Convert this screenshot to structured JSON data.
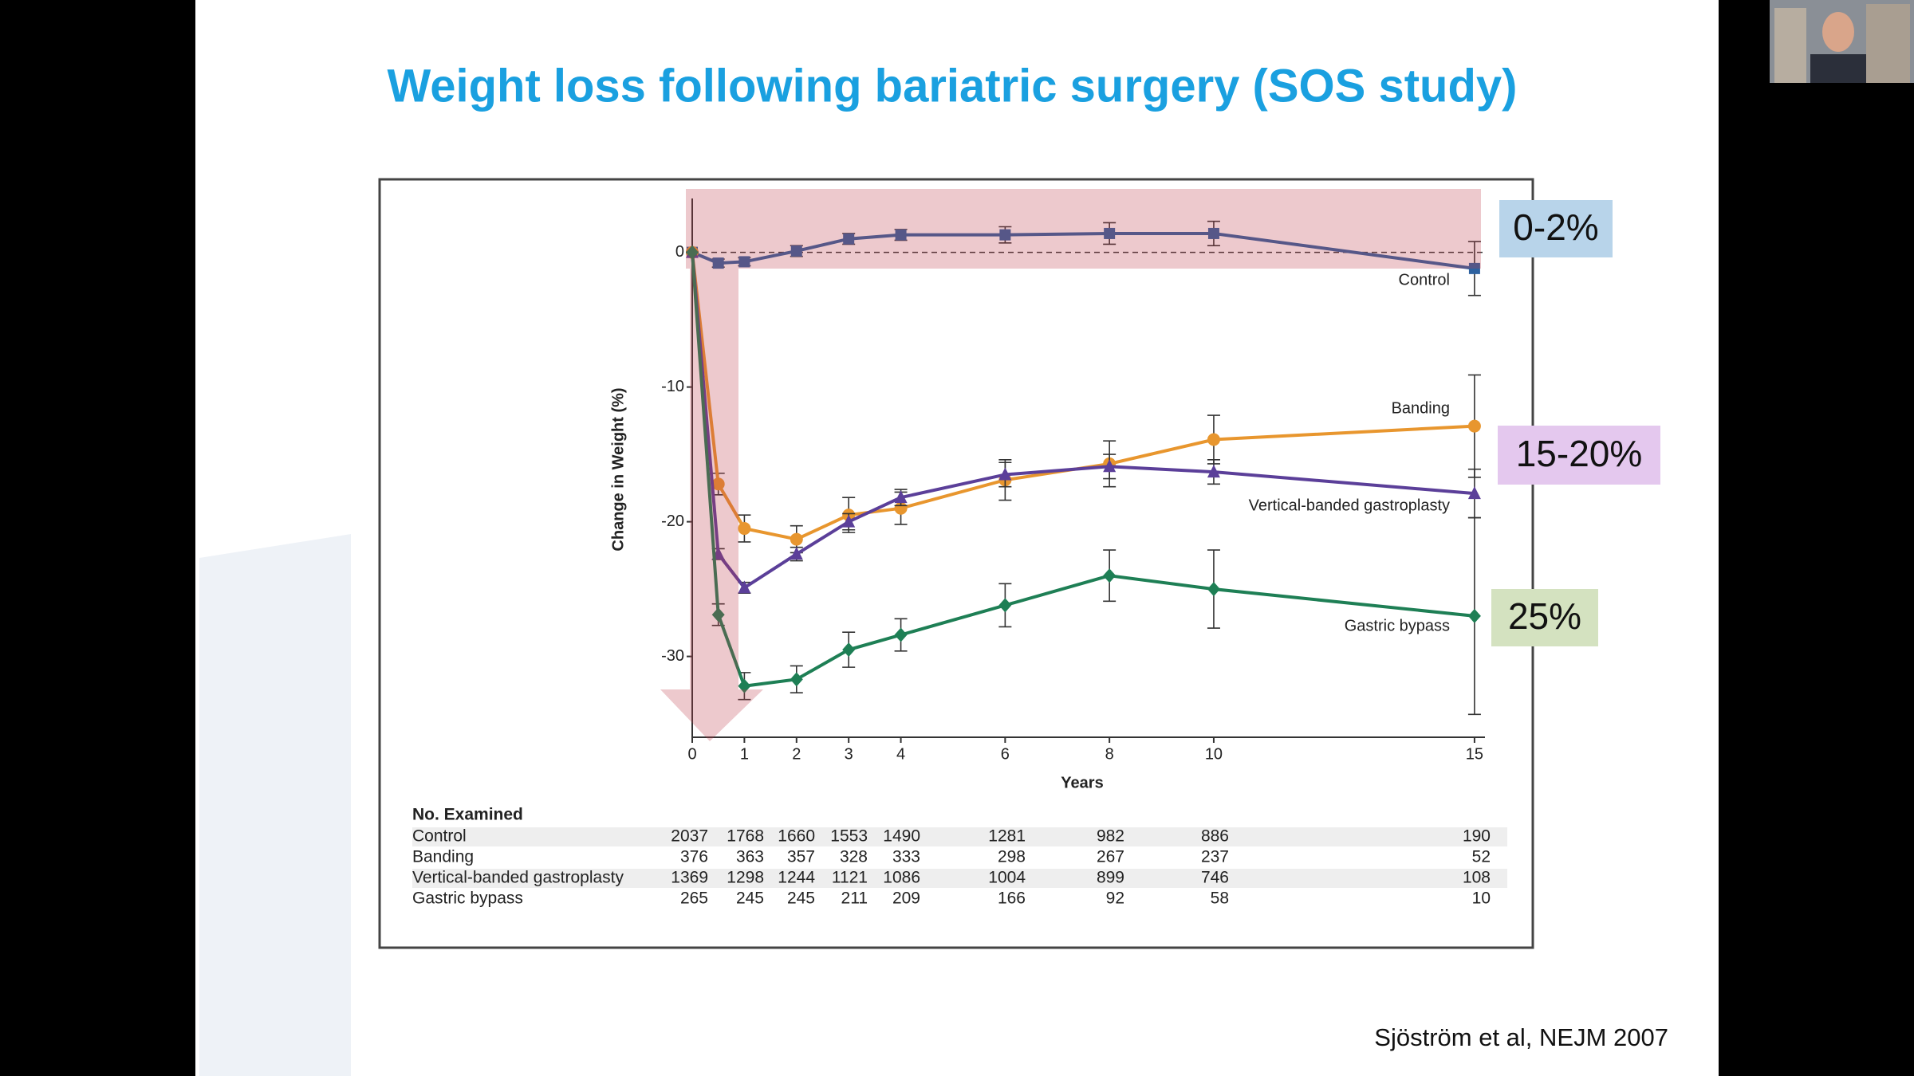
{
  "chart_data": {
    "type": "line",
    "title": "Weight loss following bariatric surgery (SOS study)",
    "ylabel": "Change in Weight (%)",
    "xlabel": "Years",
    "x": [
      0,
      0.5,
      1,
      2,
      3,
      4,
      6,
      8,
      10,
      15
    ],
    "xlim": [
      0,
      15.2
    ],
    "xticks": [
      0,
      1,
      2,
      3,
      4,
      6,
      8,
      10,
      15
    ],
    "ylim": [
      -36,
      4
    ],
    "yticks": [
      0,
      -10,
      -20,
      -30
    ],
    "series": [
      {
        "name": "Control",
        "color": "#2e62a0",
        "marker": "square",
        "values": [
          0,
          -0.8,
          -0.7,
          0.1,
          1.0,
          1.3,
          1.3,
          1.4,
          1.4,
          -1.2
        ],
        "errors": [
          0,
          0.3,
          0.3,
          0.4,
          0.4,
          0.4,
          0.6,
          0.8,
          0.9,
          2.0
        ]
      },
      {
        "name": "Banding",
        "color": "#e8962e",
        "marker": "circle",
        "values": [
          0,
          -17.2,
          -20.5,
          -21.3,
          -19.5,
          -19.0,
          -16.9,
          -15.7,
          -13.9,
          -12.9
        ],
        "errors": [
          0,
          0.8,
          1.0,
          1.0,
          1.3,
          1.2,
          1.5,
          1.7,
          1.8,
          3.8
        ]
      },
      {
        "name": "Vertical-banded gastroplasty",
        "color": "#5b3f99",
        "marker": "triangle",
        "values": [
          0,
          -22.4,
          -24.9,
          -22.4,
          -20.0,
          -18.2,
          -16.5,
          -15.9,
          -16.3,
          -17.9
        ],
        "errors": [
          0,
          0.4,
          0.4,
          0.5,
          0.6,
          0.6,
          0.9,
          0.9,
          0.9,
          1.8
        ]
      },
      {
        "name": "Gastric bypass",
        "color": "#1e7f55",
        "marker": "diamond",
        "values": [
          0,
          -26.9,
          -32.2,
          -31.7,
          -29.5,
          -28.4,
          -26.2,
          -24.0,
          -25.0,
          -27.0
        ],
        "errors": [
          0,
          0.8,
          1.0,
          1.0,
          1.3,
          1.2,
          1.6,
          1.9,
          2.9,
          7.3
        ]
      }
    ],
    "annotations": [
      "0-2%",
      "15-20%",
      "25%"
    ],
    "table": {
      "title": "No. Examined",
      "rows": [
        {
          "name": "Control",
          "counts": [
            2037,
            1768,
            1660,
            1553,
            1490,
            1281,
            982,
            886,
            190
          ]
        },
        {
          "name": "Banding",
          "counts": [
            376,
            363,
            357,
            328,
            333,
            298,
            267,
            237,
            52
          ]
        },
        {
          "name": "Vertical-banded gastroplasty",
          "counts": [
            1369,
            1298,
            1244,
            1121,
            1086,
            1004,
            899,
            746,
            108
          ]
        },
        {
          "name": "Gastric bypass",
          "counts": [
            265,
            245,
            245,
            211,
            209,
            166,
            92,
            58,
            10
          ]
        }
      ]
    },
    "source": "Sjöström et al, NEJM 2007"
  }
}
